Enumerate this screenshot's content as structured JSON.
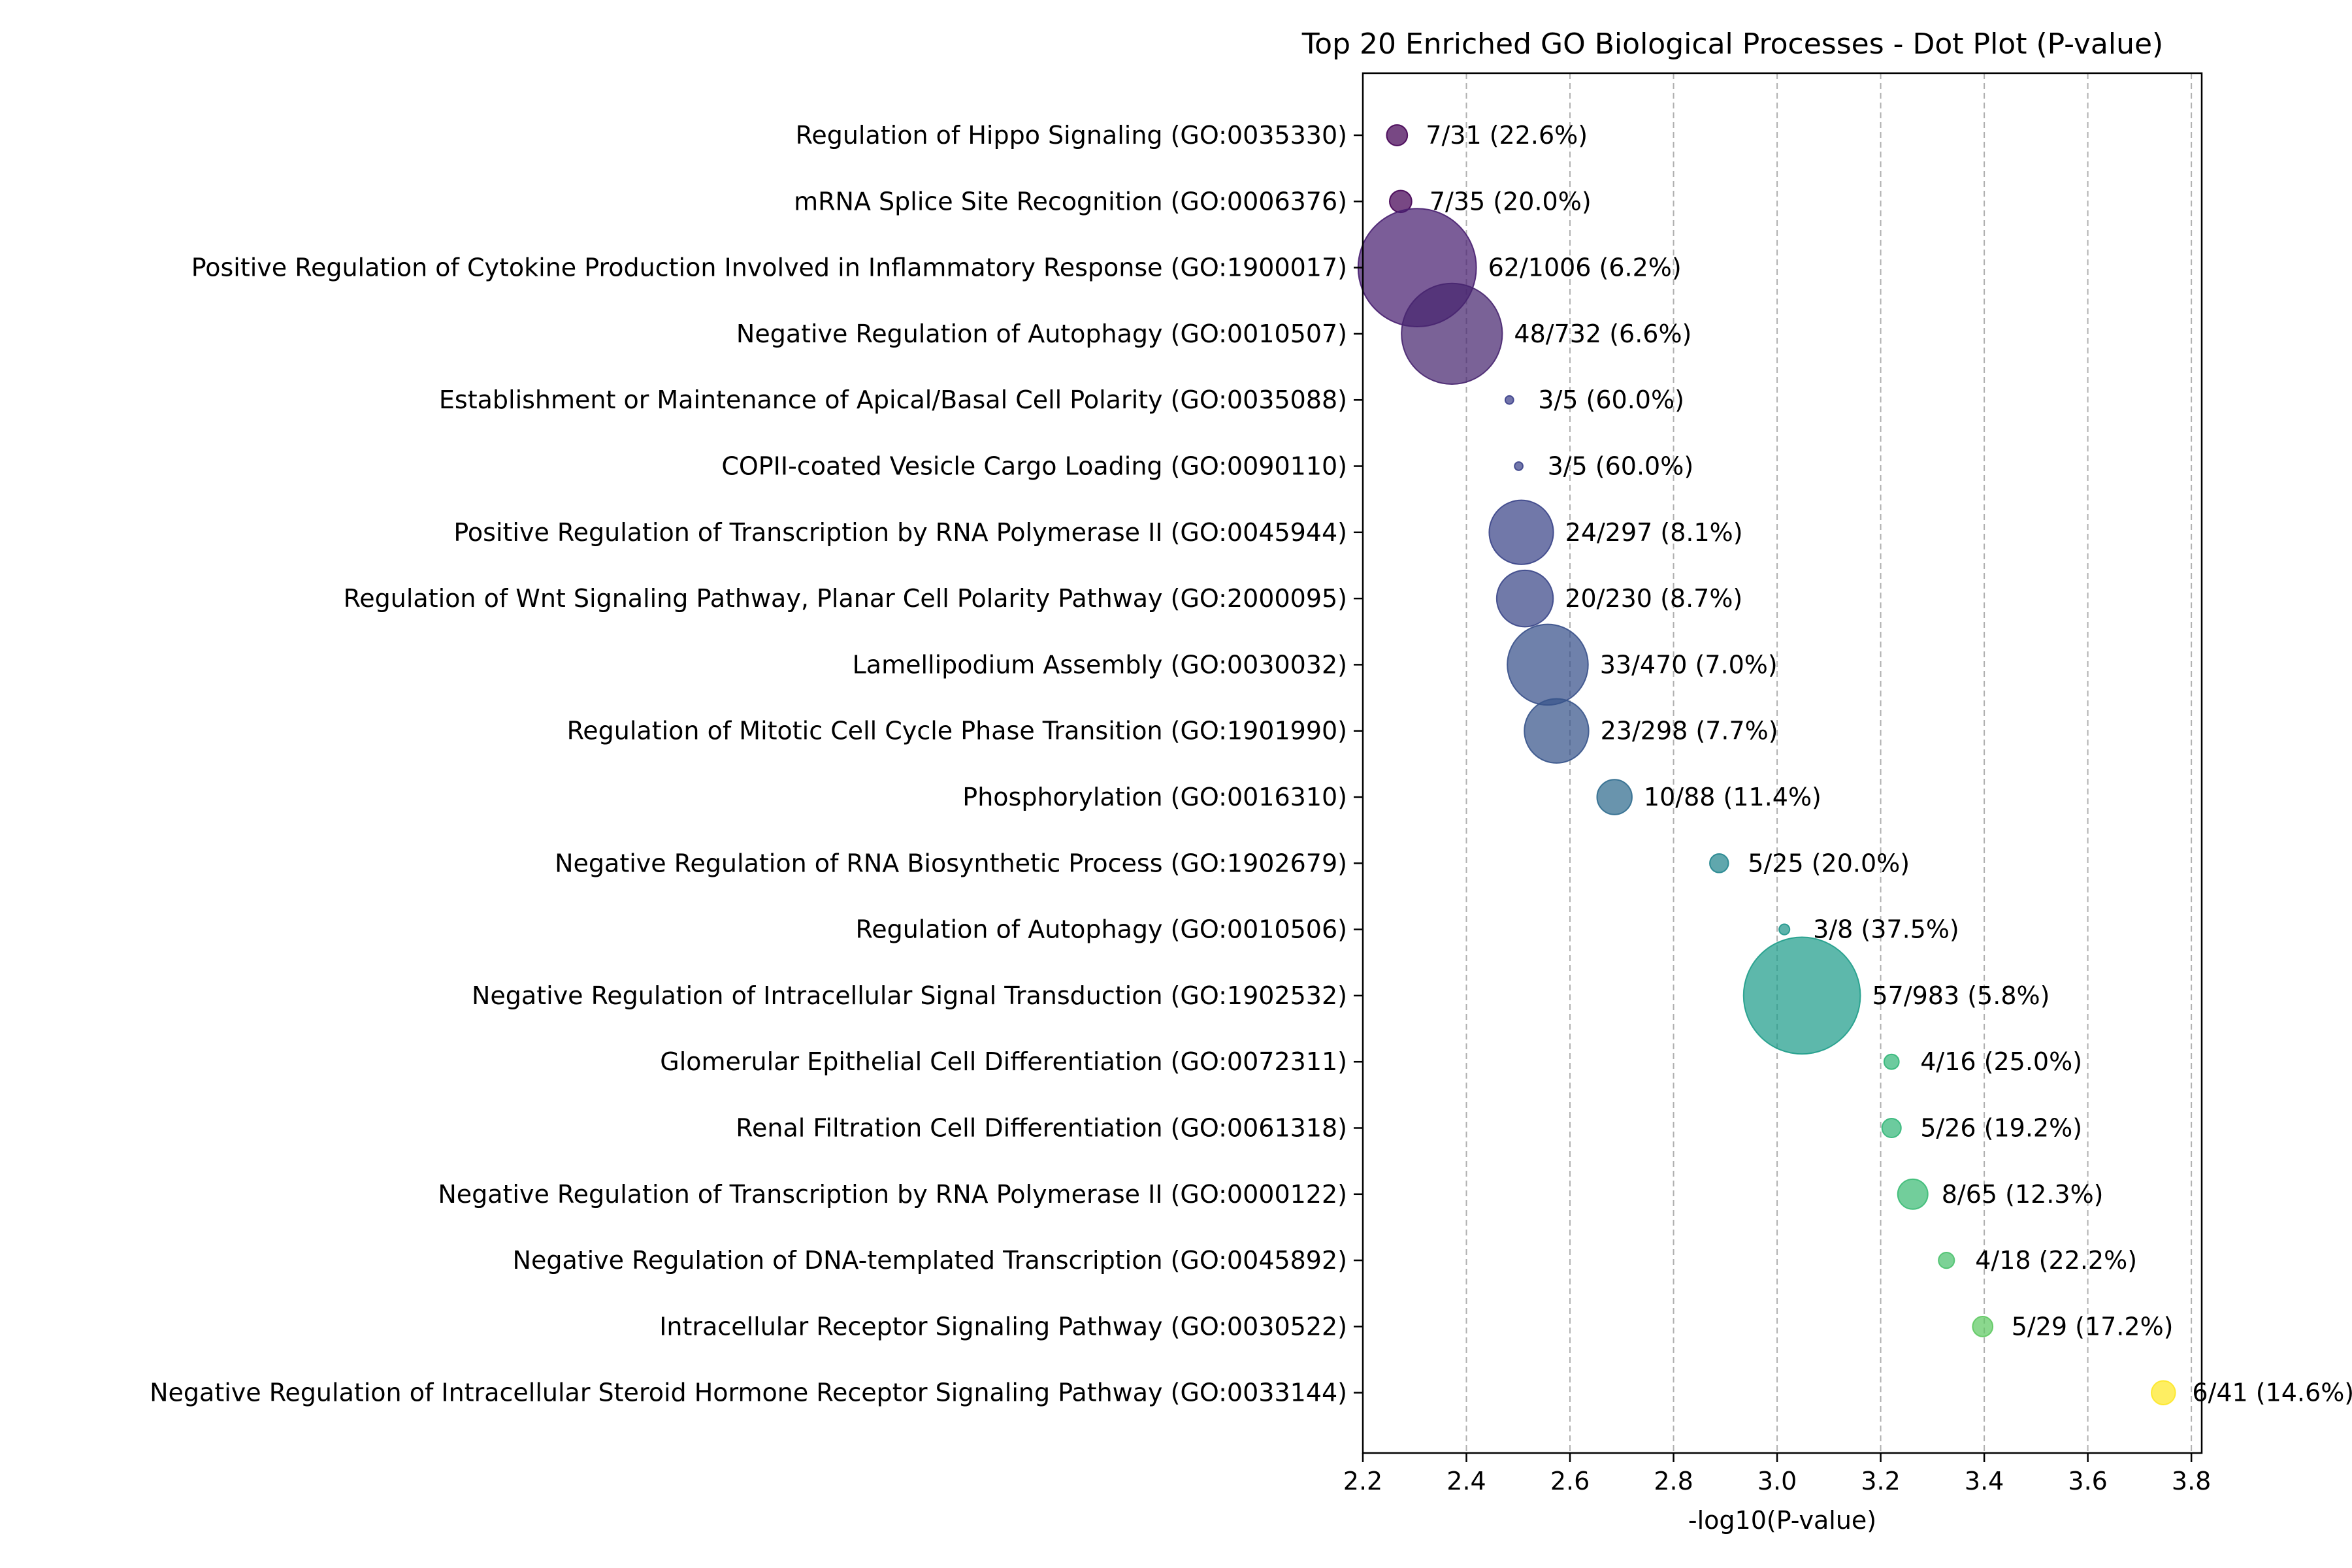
{
  "chart_data": {
    "type": "scatter",
    "title": "Top 20 Enriched GO Biological Processes - Dot Plot (P-value)",
    "xlabel": "-log10(P-value)",
    "ylabel": "",
    "xlim": [
      2.2,
      3.82
    ],
    "xticks": [
      2.2,
      2.4,
      2.6,
      2.8,
      3.0,
      3.2,
      3.4,
      3.6,
      3.8
    ],
    "xtick_labels": [
      "2.2",
      "2.4",
      "2.6",
      "2.8",
      "3.0",
      "3.2",
      "3.4",
      "3.6",
      "3.8"
    ],
    "grid": "x-dashed",
    "colormap": "viridis",
    "points": [
      {
        "term": "Regulation of Hippo Signaling (GO:0035330)",
        "x": 2.266,
        "overlap": 7,
        "total": 31,
        "label": "7/31 (22.6%)",
        "color": "#440154"
      },
      {
        "term": "mRNA Splice Site Recognition (GO:0006376)",
        "x": 2.273,
        "overlap": 7,
        "total": 35,
        "label": "7/35 (20.0%)",
        "color": "#440154"
      },
      {
        "term": "Positive Regulation of Cytokine Production Involved in Inflammatory Response (GO:1900017)",
        "x": 2.305,
        "overlap": 62,
        "total": 1006,
        "label": "62/1006 (6.2%)",
        "color": "#481f70"
      },
      {
        "term": "Negative Regulation of Autophagy (GO:0010507)",
        "x": 2.372,
        "overlap": 48,
        "total": 732,
        "label": "48/732 (6.6%)",
        "color": "#47256f"
      },
      {
        "term": "Establishment or Maintenance of Apical/Basal Cell Polarity (GO:0035088)",
        "x": 2.483,
        "overlap": 3,
        "total": 5,
        "label": "3/5 (60.0%)",
        "color": "#3b3f8a"
      },
      {
        "term": "COPII-coated Vesicle Cargo Loading (GO:0090110)",
        "x": 2.501,
        "overlap": 3,
        "total": 5,
        "label": "3/5 (60.0%)",
        "color": "#3b4289"
      },
      {
        "term": "Positive Regulation of Transcription by RNA Polymerase II (GO:0045944)",
        "x": 2.506,
        "overlap": 24,
        "total": 297,
        "label": "24/297 (8.1%)",
        "color": "#3a4488"
      },
      {
        "term": "Regulation of Wnt Signaling Pathway, Planar Cell Polarity Pathway (GO:2000095)",
        "x": 2.513,
        "overlap": 20,
        "total": 230,
        "label": "20/230 (8.7%)",
        "color": "#3a4688"
      },
      {
        "term": "Lamellipodium Assembly (GO:0030032)",
        "x": 2.557,
        "overlap": 33,
        "total": 470,
        "label": "33/470 (7.0%)",
        "color": "#38508a"
      },
      {
        "term": "Regulation of Mitotic Cell Cycle Phase Transition (GO:1901990)",
        "x": 2.574,
        "overlap": 23,
        "total": 298,
        "label": "23/298 (7.7%)",
        "color": "#37548b"
      },
      {
        "term": "Phosphorylation (GO:0016310)",
        "x": 2.686,
        "overlap": 10,
        "total": 88,
        "label": "10/88 (11.4%)",
        "color": "#2f6b8e"
      },
      {
        "term": "Negative Regulation of RNA Biosynthetic Process (GO:1902679)",
        "x": 2.888,
        "overlap": 5,
        "total": 25,
        "label": "5/25 (20.0%)",
        "color": "#22858e"
      },
      {
        "term": "Regulation of Autophagy (GO:0010506)",
        "x": 3.014,
        "overlap": 3,
        "total": 8,
        "label": "3/8 (37.5%)",
        "color": "#1f968b"
      },
      {
        "term": "Negative Regulation of Intracellular Signal Transduction (GO:1902532)",
        "x": 3.048,
        "overlap": 57,
        "total": 983,
        "label": "57/983 (5.8%)",
        "color": "#1f9d8a"
      },
      {
        "term": "Glomerular Epithelial Cell Differentiation (GO:0072311)",
        "x": 3.221,
        "overlap": 4,
        "total": 16,
        "label": "4/16 (25.0%)",
        "color": "#33b779"
      },
      {
        "term": "Renal Filtration Cell Differentiation (GO:0061318)",
        "x": 3.221,
        "overlap": 5,
        "total": 26,
        "label": "5/26 (19.2%)",
        "color": "#33b779"
      },
      {
        "term": "Negative Regulation of Transcription by RNA Polymerase II (GO:0000122)",
        "x": 3.262,
        "overlap": 8,
        "total": 65,
        "label": "8/65 (12.3%)",
        "color": "#3bbb75"
      },
      {
        "term": "Negative Regulation of DNA-templated Transcription (GO:0045892)",
        "x": 3.327,
        "overlap": 4,
        "total": 18,
        "label": "4/18 (22.2%)",
        "color": "#4ac16d"
      },
      {
        "term": "Intracellular Receptor Signaling Pathway (GO:0030522)",
        "x": 3.397,
        "overlap": 5,
        "total": 29,
        "label": "5/29 (17.2%)",
        "color": "#5ec962"
      },
      {
        "term": "Negative Regulation of Intracellular Steroid Hormone Receptor Signaling Pathway (GO:0033144)",
        "x": 3.746,
        "overlap": 6,
        "total": 41,
        "label": "6/41 (14.6%)",
        "color": "#fde725"
      }
    ]
  }
}
